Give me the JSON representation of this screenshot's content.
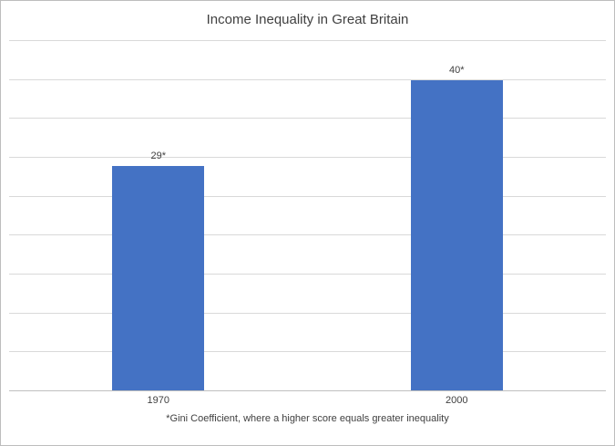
{
  "chart": {
    "title": "Income Inequality in Great Britain",
    "footnote": "*Gini Coefficient, where a higher score equals greater inequality"
  },
  "chart_data": {
    "type": "bar",
    "title": "Income Inequality in Great Britain",
    "categories": [
      "1970",
      "2000"
    ],
    "values": [
      29,
      40
    ],
    "data_labels": [
      "29*",
      "40*"
    ],
    "xlabel": "",
    "ylabel": "",
    "ylim": [
      0,
      45
    ],
    "gridline_step": 5,
    "grid": true,
    "legend_position": "none",
    "bar_color": "#4472C4",
    "annotations": [
      "*Gini Coefficient, where a higher score equals greater inequality"
    ]
  },
  "colors": {
    "bar": "#4472C4",
    "gridline": "#D9D9D9",
    "axis_line": "#BFBFBF",
    "text": "#404040",
    "border": "#BDBDBD",
    "background": "#FFFFFF"
  }
}
